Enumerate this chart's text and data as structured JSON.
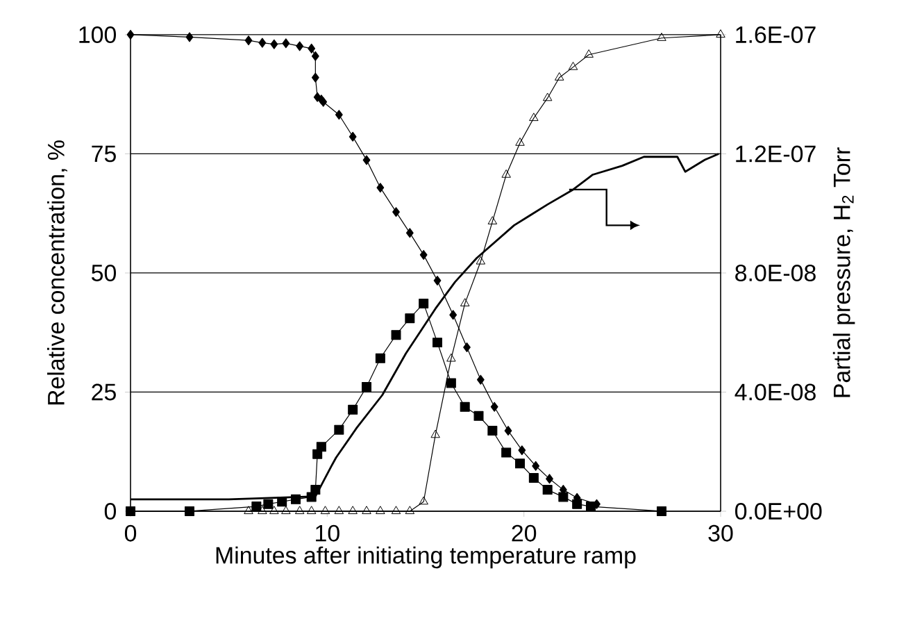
{
  "chart_data": {
    "type": "line",
    "xlabel": "Minutes after initiating temperature ramp",
    "ylabel": "Relative concentration, %",
    "y2label": "Partial pressure, H$_{2}$ Torr",
    "xlim": [
      0,
      30
    ],
    "xticks": [
      0,
      10,
      20,
      30
    ],
    "ylim": [
      0,
      100
    ],
    "yticks": [
      0,
      25,
      50,
      75,
      100
    ],
    "y2lim": [
      0,
      1.6e-07
    ],
    "y2ticks": [
      {
        "value": 0,
        "label": "0.0E+00"
      },
      {
        "value": 4e-08,
        "label": "4.0E-08"
      },
      {
        "value": 8e-08,
        "label": "8.0E-08"
      },
      {
        "value": 1.2e-07,
        "label": "1.2E-07"
      },
      {
        "value": 1.6e-07,
        "label": "1.6E-07"
      }
    ],
    "grid": "y",
    "series": [
      {
        "color": "#000000",
        "marker": "diamond",
        "x": [
          0,
          3,
          6,
          6.7,
          7.3,
          7.9,
          8.6,
          9.2,
          9.4,
          9.4,
          9.5,
          9.7,
          9.8,
          10.6,
          11.3,
          12,
          12.7,
          13.5,
          14.2,
          14.9,
          15.6,
          16.4,
          17.1,
          17.8,
          18.5,
          19.2,
          19.9,
          20.6,
          21.3,
          22,
          22.7,
          23.7
        ],
        "values": [
          100,
          99.5,
          98.8,
          98.3,
          98,
          98.2,
          97.6,
          97.1,
          95.5,
          91,
          86.9,
          86.4,
          85.9,
          83.2,
          78.6,
          73.7,
          67.9,
          62.8,
          58.4,
          53.8,
          48.4,
          41.2,
          34.4,
          27.6,
          21.9,
          16.9,
          12.8,
          9.5,
          6.8,
          4.5,
          2.8,
          1.5
        ]
      },
      {
        "color": "#000000",
        "marker": "square",
        "x": [
          0,
          3,
          6.4,
          7,
          7.7,
          8.4,
          9.2,
          9.4,
          9.5,
          9.7,
          10.6,
          11.3,
          12,
          12.7,
          13.5,
          14.2,
          14.9,
          15.6,
          16.3,
          17,
          17.7,
          18.4,
          19.1,
          19.8,
          20.5,
          21.2,
          22,
          22.7,
          23.4,
          27
        ],
        "values": [
          0,
          0,
          1,
          1.5,
          2,
          2.5,
          3,
          4.5,
          12,
          13.5,
          17.1,
          21.3,
          26.1,
          32.1,
          37,
          40.5,
          43.6,
          35.4,
          26.9,
          21.9,
          20,
          16.9,
          12.3,
          10,
          7,
          4.5,
          3,
          1.5,
          1,
          0
        ]
      },
      {
        "color": "#000000",
        "marker": "triangle",
        "x": [
          6,
          6.7,
          7.3,
          7.9,
          8.6,
          9.2,
          9.9,
          10.6,
          11.3,
          12,
          12.7,
          13.5,
          14.2,
          14.9,
          15.5,
          16.3,
          17,
          17.8,
          18.4,
          19.1,
          19.8,
          20.5,
          21.2,
          21.8,
          22.5,
          23.3,
          27,
          30
        ],
        "values": [
          0,
          0,
          0,
          0,
          0,
          0,
          0,
          0,
          0,
          0,
          0,
          0,
          0,
          2,
          16,
          32,
          43.6,
          52.4,
          60.8,
          70.6,
          77.3,
          82.5,
          86.7,
          91,
          93.2,
          95.8,
          99.3,
          100
        ]
      },
      {
        "color": "#000000",
        "marker": "none",
        "axis": "y2",
        "x": [
          0,
          5,
          9.4,
          9.8,
          10.2,
          10.45,
          11.5,
          12.8,
          14,
          15.5,
          16.5,
          17.6,
          19.5,
          21.2,
          22.5,
          23.5,
          25,
          26.1,
          27.8,
          28.2,
          29.2,
          29.9
        ],
        "values": [
          4e-09,
          4e-09,
          5e-09,
          1e-08,
          1.5e-08,
          1.8e-08,
          2.8e-08,
          3.9e-08,
          5.3e-08,
          6.8e-08,
          7.7e-08,
          8.5e-08,
          9.6e-08,
          1.03e-07,
          1.08e-07,
          1.13e-07,
          1.16e-07,
          1.19e-07,
          1.19e-07,
          1.14e-07,
          1.18e-07,
          1.2e-07
        ]
      }
    ]
  }
}
